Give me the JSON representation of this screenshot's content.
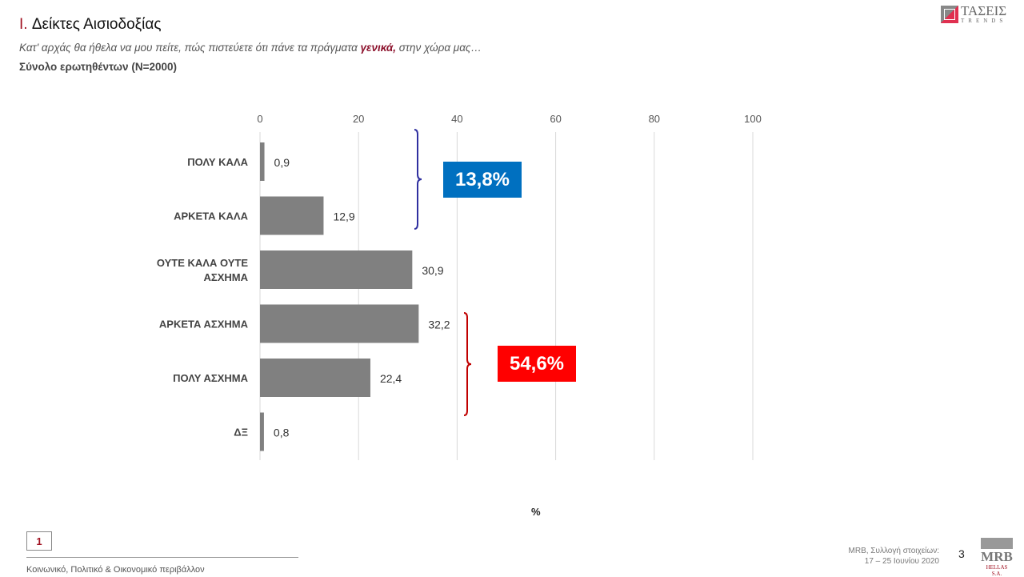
{
  "header": {
    "title_num": "I.",
    "title": "Δείκτες Αισιοδοξίας",
    "subtitle_pre": "Κατ' αρχάς θα ήθελα να μου πείτε, πώς πιστεύετε ότι πάνε τα πράγματα ",
    "subtitle_hl": "γενικά,",
    "subtitle_post": " στην χώρα μας…",
    "base": "Σύνολο ερωτηθέντων (N=2000)"
  },
  "logo": {
    "name": "ΤΑΣΕΙΣ",
    "sub": "TRENDS"
  },
  "chart_data": {
    "type": "bar",
    "orientation": "horizontal",
    "categories": [
      "ΠΟΛΥ ΚΑΛΑ",
      "ΑΡΚΕΤΑ ΚΑΛΑ",
      "ΟΥΤΕ ΚΑΛΑ ΟΥΤΕ ΑΣΧΗΜΑ",
      "ΑΡΚΕΤΑ ΑΣΧΗΜΑ",
      "ΠΟΛΥ ΑΣΧΗΜΑ",
      "ΔΞ"
    ],
    "values": [
      0.9,
      12.9,
      30.9,
      32.2,
      22.4,
      0.8
    ],
    "value_labels": [
      "0,9",
      "12,9",
      "30,9",
      "32,2",
      "22,4",
      "0,8"
    ],
    "xlim": [
      0,
      100
    ],
    "xticks": [
      "0",
      "20",
      "40",
      "60",
      "80",
      "100"
    ],
    "xlabel": "%",
    "grid": true,
    "color": "#808080",
    "annotations": [
      {
        "text": "13,8%",
        "covers": [
          "ΠΟΛΥ ΚΑΛΑ",
          "ΑΡΚΕΤΑ ΚΑΛΑ"
        ],
        "color": "#0070c0",
        "bracket": "#3030a0"
      },
      {
        "text": "54,6%",
        "covers": [
          "ΑΡΚΕΤΑ ΑΣΧΗΜΑ",
          "ΠΟΛΥ ΑΣΧΗΜΑ"
        ],
        "color": "#ff0000",
        "bracket": "#c00000"
      }
    ]
  },
  "footer": {
    "page_box": "1",
    "section": "Κοινωνικό, Πολιτικό & Οικονομικό περιβάλλον",
    "source_line1": "MRB, Συλλογή στοιχείων:",
    "source_line2": "17 – 25 Ιουνίου 2020",
    "page_number": "3",
    "mrb": "MRB",
    "mrb_sub": "HELLAS S.A."
  }
}
